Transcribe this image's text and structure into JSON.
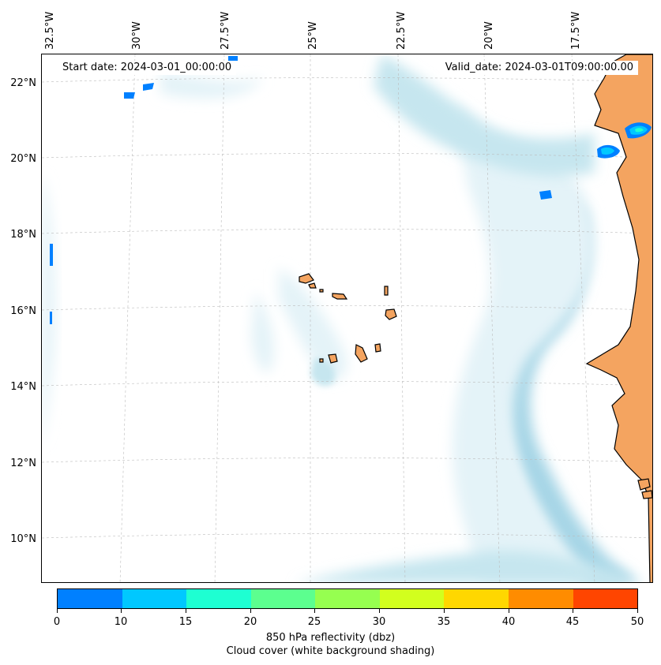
{
  "map": {
    "start_date": "Start date: 2024-03-01_00:00:00",
    "valid_date": "Valid_date: 2024-03-01T09:00:00.00",
    "lon_labels": [
      "32.5°W",
      "30°W",
      "27.5°W",
      "25°W",
      "22.5°W",
      "20°W",
      "17.5°W"
    ],
    "lat_labels": [
      "22°N",
      "20°N",
      "18°N",
      "16°N",
      "14°N",
      "12°N",
      "10°N"
    ],
    "colors": {
      "land": "#f4a460",
      "cloud_light": "#e4f3f8",
      "cloud_mid": "#c6e6ef",
      "cloud_dark": "#a6d5e6",
      "gridline": "#bbbbbb",
      "coast": "#000000"
    }
  },
  "colorbar": {
    "ticks": [
      "0",
      "10",
      "15",
      "20",
      "25",
      "30",
      "35",
      "40",
      "45",
      "50"
    ],
    "colors": [
      "#0080ff",
      "#00c8ff",
      "#1effd2",
      "#5cff8f",
      "#96ff50",
      "#d2ff1e",
      "#ffd700",
      "#ff8c00",
      "#ff4500"
    ],
    "label": "850 hPa reflectivity (dbz)",
    "sublabel": "Cloud cover (white background shading)"
  }
}
